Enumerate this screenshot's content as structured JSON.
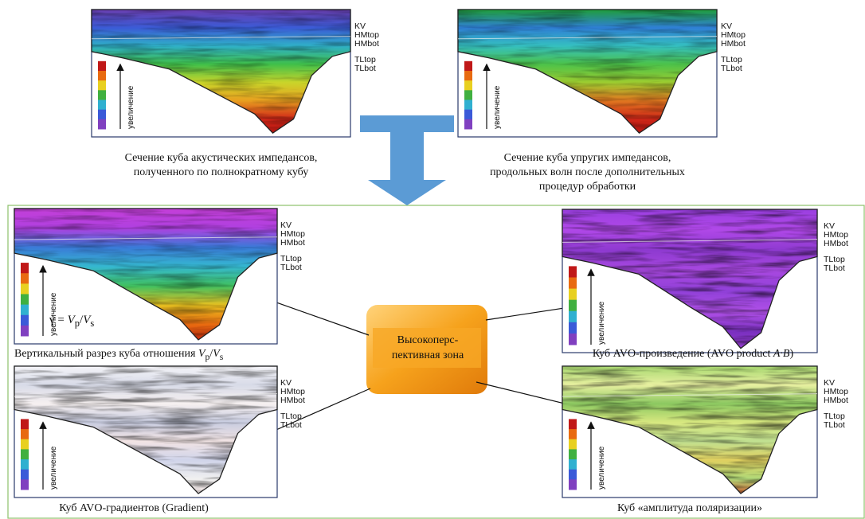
{
  "panels": [
    {
      "labels": [
        "KV",
        "HMtop",
        "HMbot",
        "TLtop",
        "TLbot"
      ],
      "scale_label": "увеличение",
      "caption": [
        "Сечение куба акустических импедансов,",
        "полученного по полнократному кубу"
      ]
    },
    {
      "labels": [
        "KV",
        "HMtop",
        "HMbot",
        "TLtop",
        "TLbot"
      ],
      "scale_label": "увеличение",
      "caption": [
        "Сечение куба упругих импедансов,",
        "продольных волн после дополнительных",
        "процедур обработки"
      ]
    },
    {
      "labels": [
        "KV",
        "HMtop",
        "HMbot",
        "TLtop",
        "TLbot"
      ],
      "scale_label": "увеличение",
      "caption": [
        "Вертикальный разрез куба отношения ",
        "V",
        "p",
        "/",
        "V",
        "s"
      ],
      "formula": [
        "γ = ",
        "V",
        "p",
        "/",
        "V",
        "s"
      ]
    },
    {
      "labels": [
        "KV",
        "HMtop",
        "HMbot",
        "TLtop",
        "TLbot"
      ],
      "scale_label": "увеличение",
      "caption": [
        "Куб AVO-произведение (AVO product ",
        "A·B",
        ")"
      ]
    },
    {
      "labels": [
        "KV",
        "HMtop",
        "HMbot",
        "TLtop",
        "TLbot"
      ],
      "scale_label": "увеличение",
      "caption": [
        "Куб AVO-градиентов (Gradient)"
      ]
    },
    {
      "labels": [
        "KV",
        "HMtop",
        "HMbot",
        "TLtop",
        "TLbot"
      ],
      "scale_label": "увеличение",
      "caption": [
        "Куб «амплитуда поляризации»"
      ]
    }
  ],
  "center_label": [
    "Высокоперс-",
    "пективная зона"
  ]
}
